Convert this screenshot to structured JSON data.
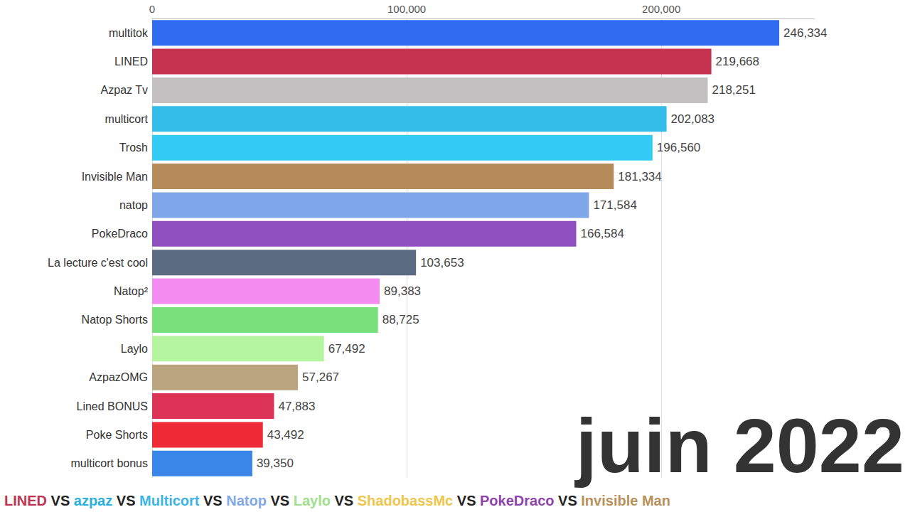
{
  "chart_data": {
    "type": "bar",
    "orientation": "horizontal",
    "categories": [
      "multitok",
      "LINED",
      "Azpaz Tv",
      "multicort",
      "Trosh",
      "Invisible Man",
      "natop",
      "PokeDraco",
      "La lecture c'est cool",
      "Natop²",
      "Natop Shorts",
      "Laylo",
      "AzpazOMG",
      "Lined BONUS",
      "Poke Shorts",
      "multicort bonus"
    ],
    "values": [
      246334,
      219668,
      218251,
      202083,
      196560,
      181334,
      171584,
      166584,
      103653,
      89383,
      88725,
      67492,
      57267,
      47883,
      43492,
      39350
    ],
    "value_labels": [
      "246,334",
      "219,668",
      "218,251",
      "202,083",
      "196,560",
      "181,334",
      "171,584",
      "166,584",
      "103,653",
      "89,383",
      "88,725",
      "67,492",
      "57,267",
      "47,883",
      "43,492",
      "39,350"
    ],
    "colors": [
      "#2f6cf0",
      "#c63350",
      "#c2c0c0",
      "#33bde8",
      "#33ccf5",
      "#b58b5a",
      "#7ea6e8",
      "#8f4fbf",
      "#5a6a80",
      "#f28cf0",
      "#77e07a",
      "#b6f5a0",
      "#baa57e",
      "#dc3356",
      "#ee2a36",
      "#3a86e8"
    ],
    "xlim": [
      0,
      260000
    ],
    "xticks": [
      0,
      {
        "value": 100000,
        "label": "100,000"
      },
      {
        "value": 200000,
        "label": "200,000"
      }
    ],
    "grid": true,
    "data_labels": true,
    "annotations": [
      {
        "text": "juin 2022"
      }
    ],
    "subtitle_separator": "VS",
    "subtitle_parts": [
      {
        "text": "LINED",
        "color": "#c0334e"
      },
      {
        "text": "azpaz",
        "color": "#29b0e0"
      },
      {
        "text": "Multicort",
        "color": "#3cb4e6"
      },
      {
        "text": "Natop",
        "color": "#7fa8e8"
      },
      {
        "text": "Laylo",
        "color": "#9fe08c"
      },
      {
        "text": "ShadobassMc",
        "color": "#eec64c"
      },
      {
        "text": "PokeDraco",
        "color": "#8e44ad"
      },
      {
        "text": "Invisible Man",
        "color": "#b8905a"
      }
    ]
  }
}
